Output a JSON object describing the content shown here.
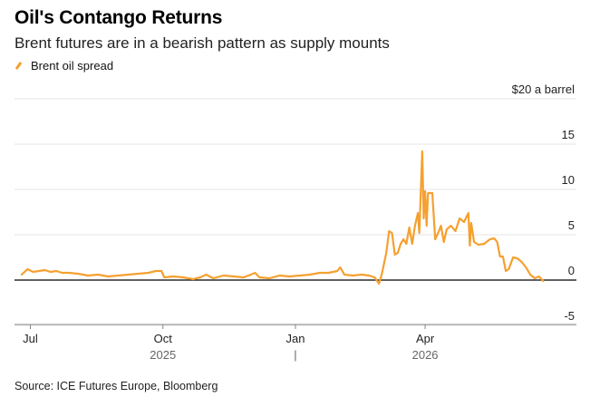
{
  "title": "Oil's Contango Returns",
  "subtitle": "Brent futures are in a bearish pattern as supply mounts",
  "legend": {
    "label": "Brent oil spread",
    "color": "#f5a030"
  },
  "source": "Source: ICE Futures Europe, Bloomberg",
  "chart_data": {
    "type": "line",
    "title": "Oil's Contango Returns",
    "subtitle": "Brent futures are in a bearish pattern as supply mounts",
    "y_unit_label": "$20 a barrel",
    "ylim": [
      -6,
      20
    ],
    "yticks": [
      {
        "value": 20,
        "label": "$20 a barrel"
      },
      {
        "value": 15,
        "label": "15"
      },
      {
        "value": 10,
        "label": "10"
      },
      {
        "value": 5,
        "label": "5"
      },
      {
        "value": 0,
        "label": "0"
      },
      {
        "value": -5,
        "label": "-5"
      }
    ],
    "xlim": [
      "2025-06-20",
      "2026-07-15"
    ],
    "xticks": [
      {
        "date": "2025-07-01",
        "label": "Jul"
      },
      {
        "date": "2025-10-01",
        "label": "Oct"
      },
      {
        "date": "2026-01-01",
        "label": "Jan"
      },
      {
        "date": "2026-04-01",
        "label": "Apr"
      }
    ],
    "year_labels": [
      {
        "date": "2025-10-01",
        "label": "2025"
      },
      {
        "date": "2026-04-01",
        "label": "2026"
      }
    ],
    "year_divider_date": "2026-01-01",
    "year_divider_label": "|",
    "grid": true,
    "legend_position": "top-left",
    "series": [
      {
        "name": "Brent oil spread",
        "color": "#f5a030",
        "points": [
          [
            "2025-06-25",
            0.6
          ],
          [
            "2025-06-29",
            1.2
          ],
          [
            "2025-07-03",
            0.9
          ],
          [
            "2025-07-07",
            1.0
          ],
          [
            "2025-07-11",
            1.1
          ],
          [
            "2025-07-15",
            0.9
          ],
          [
            "2025-07-19",
            1.0
          ],
          [
            "2025-07-23",
            0.8
          ],
          [
            "2025-07-28",
            0.8
          ],
          [
            "2025-08-03",
            0.7
          ],
          [
            "2025-08-10",
            0.5
          ],
          [
            "2025-08-17",
            0.6
          ],
          [
            "2025-08-24",
            0.4
          ],
          [
            "2025-08-31",
            0.5
          ],
          [
            "2025-09-07",
            0.6
          ],
          [
            "2025-09-14",
            0.7
          ],
          [
            "2025-09-21",
            0.8
          ],
          [
            "2025-09-26",
            1.0
          ],
          [
            "2025-09-30",
            1.0
          ],
          [
            "2025-10-02",
            0.3
          ],
          [
            "2025-10-08",
            0.4
          ],
          [
            "2025-10-15",
            0.3
          ],
          [
            "2025-10-22",
            0.1
          ],
          [
            "2025-10-27",
            0.3
          ],
          [
            "2025-10-31",
            0.6
          ],
          [
            "2025-11-05",
            0.2
          ],
          [
            "2025-11-12",
            0.5
          ],
          [
            "2025-11-19",
            0.4
          ],
          [
            "2025-11-26",
            0.3
          ],
          [
            "2025-12-01",
            0.6
          ],
          [
            "2025-12-04",
            0.8
          ],
          [
            "2025-12-07",
            0.3
          ],
          [
            "2025-12-14",
            0.2
          ],
          [
            "2025-12-21",
            0.5
          ],
          [
            "2025-12-28",
            0.4
          ],
          [
            "2026-01-04",
            0.5
          ],
          [
            "2026-01-11",
            0.6
          ],
          [
            "2026-01-18",
            0.8
          ],
          [
            "2026-01-24",
            0.8
          ],
          [
            "2026-01-30",
            1.0
          ],
          [
            "2026-02-01",
            1.4
          ],
          [
            "2026-02-04",
            0.6
          ],
          [
            "2026-02-10",
            0.5
          ],
          [
            "2026-02-16",
            0.6
          ],
          [
            "2026-02-21",
            0.5
          ],
          [
            "2026-02-25",
            0.3
          ],
          [
            "2026-02-28",
            -0.4
          ],
          [
            "2026-03-02",
            0.7
          ],
          [
            "2026-03-05",
            3.0
          ],
          [
            "2026-03-07",
            5.4
          ],
          [
            "2026-03-09",
            5.2
          ],
          [
            "2026-03-11",
            2.8
          ],
          [
            "2026-03-13",
            3.0
          ],
          [
            "2026-03-15",
            4.0
          ],
          [
            "2026-03-17",
            4.5
          ],
          [
            "2026-03-19",
            4.0
          ],
          [
            "2026-03-21",
            5.8
          ],
          [
            "2026-03-23",
            4.0
          ],
          [
            "2026-03-25",
            6.0
          ],
          [
            "2026-03-27",
            7.4
          ],
          [
            "2026-03-28",
            5.2
          ],
          [
            "2026-03-30",
            14.2
          ],
          [
            "2026-03-31",
            6.8
          ],
          [
            "2026-04-01",
            9.8
          ],
          [
            "2026-04-02",
            6.0
          ],
          [
            "2026-04-03",
            9.6
          ],
          [
            "2026-04-06",
            9.6
          ],
          [
            "2026-04-08",
            4.5
          ],
          [
            "2026-04-10",
            5.2
          ],
          [
            "2026-04-12",
            6.0
          ],
          [
            "2026-04-14",
            4.2
          ],
          [
            "2026-04-16",
            5.6
          ],
          [
            "2026-04-19",
            6.0
          ],
          [
            "2026-04-22",
            5.4
          ],
          [
            "2026-04-25",
            6.8
          ],
          [
            "2026-04-28",
            6.4
          ],
          [
            "2026-05-01",
            7.4
          ],
          [
            "2026-05-02",
            3.8
          ],
          [
            "2026-05-03",
            6.3
          ],
          [
            "2026-05-05",
            4.2
          ],
          [
            "2026-05-08",
            3.9
          ],
          [
            "2026-05-12",
            4.0
          ],
          [
            "2026-05-16",
            4.5
          ],
          [
            "2026-05-19",
            4.6
          ],
          [
            "2026-05-21",
            4.2
          ],
          [
            "2026-05-23",
            2.6
          ],
          [
            "2026-05-25",
            2.6
          ],
          [
            "2026-05-27",
            1.0
          ],
          [
            "2026-05-29",
            1.2
          ],
          [
            "2026-06-01",
            2.5
          ],
          [
            "2026-06-04",
            2.4
          ],
          [
            "2026-06-07",
            2.0
          ],
          [
            "2026-06-10",
            1.4
          ],
          [
            "2026-06-13",
            0.6
          ],
          [
            "2026-06-16",
            0.2
          ],
          [
            "2026-06-19",
            0.4
          ],
          [
            "2026-06-22",
            -0.1
          ]
        ]
      }
    ]
  }
}
